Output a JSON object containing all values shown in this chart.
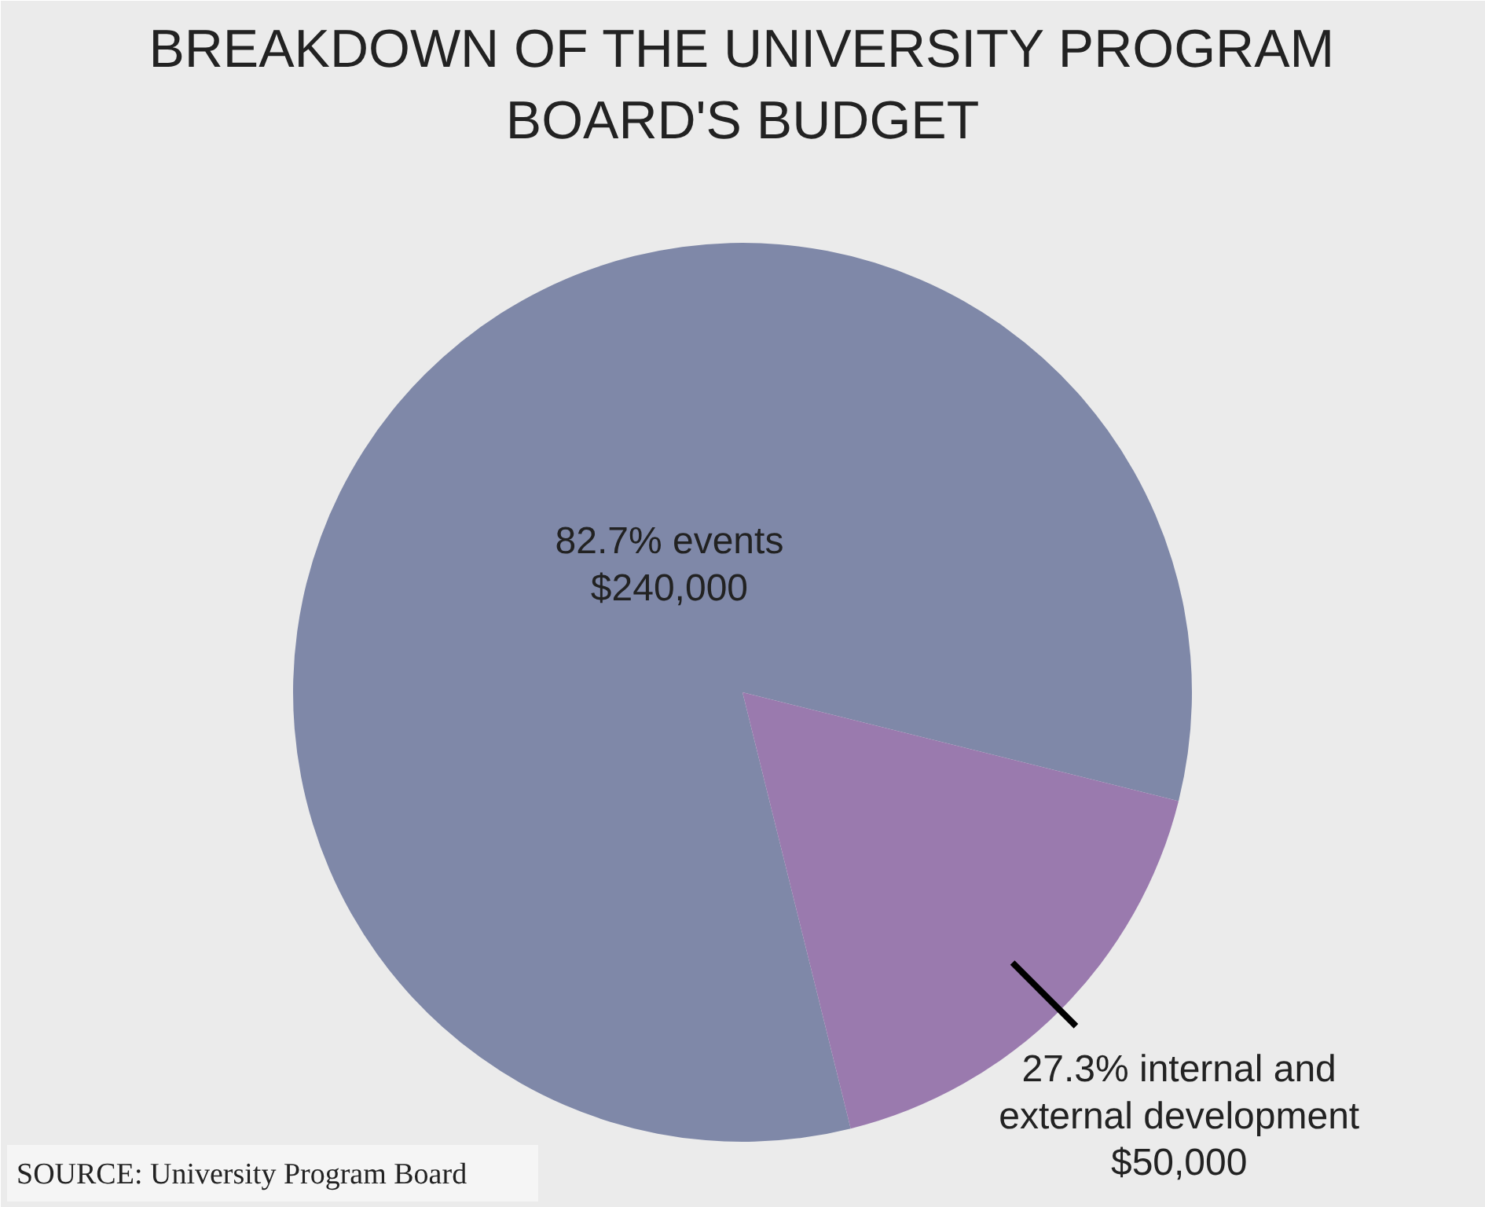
{
  "chart_data": {
    "type": "pie",
    "title": "BREAKDOWN OF THE UNIVERSITY PROGRAM\nBOARD'S BUDGET",
    "categories": [
      "82.7% events\n$240,000",
      "27.3% internal and\nexternal development\n$50,000"
    ],
    "values": [
      240000,
      50000
    ],
    "colors": [
      "#7f88a8",
      "#9a7aae"
    ],
    "annotations": [
      "SOURCE: University Program Board"
    ]
  }
}
